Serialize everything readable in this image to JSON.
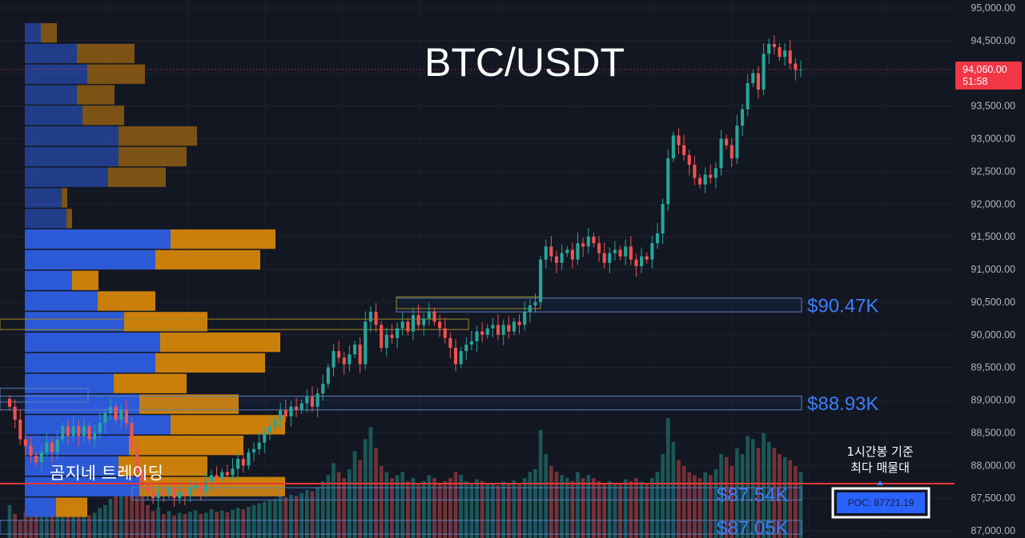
{
  "chart_data": {
    "type": "candlestick",
    "title": "BTC/USDT",
    "y_axis": {
      "ticks": [
        "95,000.00",
        "94,500.00",
        "94,000.00",
        "93,500.00",
        "93,000.00",
        "92,500.00",
        "92,000.00",
        "91,500.00",
        "91,000.00",
        "90,500.00",
        "90,000.00",
        "89,500.00",
        "89,000.00",
        "88,500.00",
        "88,000.00",
        "87,500.00",
        "87,000.00"
      ],
      "range": [
        86950,
        95050
      ],
      "position": "right"
    },
    "current_price": {
      "label": "94,060.00",
      "countdown": "51:58",
      "value": 94060,
      "color": "#f23645"
    },
    "zones": [
      {
        "label": "$90.47K",
        "low": 90350,
        "high": 90560
      },
      {
        "label": "$88.93K",
        "low": 88850,
        "high": 89060
      },
      {
        "label": "$87.54K",
        "low": 87470,
        "high": 87660
      },
      {
        "label": "$87.05K",
        "low": 86950,
        "high": 87160
      }
    ],
    "poc": {
      "label": "POC: 87721.19",
      "value": 87721.19,
      "line_color": "#e53935"
    },
    "annotation": {
      "line1": "1시간봉 기준",
      "line2": "최다 매물대"
    },
    "watermark": "곰지네 트레이딩",
    "volume_profile": {
      "bucket_size_usd": 312,
      "buy_color": "#2d5de0",
      "sell_color": "#d4850a",
      "rows": [
        {
          "buy": 20,
          "sell": 20
        },
        {
          "buy": 65,
          "sell": 72
        },
        {
          "buy": 78,
          "sell": 72
        },
        {
          "buy": 65,
          "sell": 47
        },
        {
          "buy": 72,
          "sell": 52
        },
        {
          "buy": 117,
          "sell": 98
        },
        {
          "buy": 117,
          "sell": 85
        },
        {
          "buy": 104,
          "sell": 72
        },
        {
          "buy": 46,
          "sell": 7
        },
        {
          "buy": 52,
          "sell": 7
        },
        {
          "buy": 182,
          "sell": 131
        },
        {
          "buy": 163,
          "sell": 131
        },
        {
          "buy": 59,
          "sell": 33
        },
        {
          "buy": 91,
          "sell": 72
        },
        {
          "buy": 124,
          "sell": 104
        },
        {
          "buy": 169,
          "sell": 150
        },
        {
          "buy": 163,
          "sell": 137
        },
        {
          "buy": 111,
          "sell": 91
        },
        {
          "buy": 143,
          "sell": 124
        },
        {
          "buy": 182,
          "sell": 143
        },
        {
          "buy": 130,
          "sell": 143
        },
        {
          "buy": 117,
          "sell": 111
        },
        {
          "buy": 143,
          "sell": 182
        },
        {
          "buy": 39,
          "sell": 39
        }
      ]
    },
    "candles_close": [
      88900,
      88700,
      88400,
      88300,
      88150,
      88050,
      88200,
      88350,
      88200,
      88400,
      88600,
      88450,
      88600,
      88450,
      88600,
      88400,
      88500,
      88650,
      88800,
      88900,
      88700,
      88850,
      88650,
      88250,
      87900,
      87700,
      87600,
      87500,
      87600,
      87550,
      87650,
      87500,
      87600,
      87550,
      87650,
      87700,
      87600,
      87750,
      87850,
      87800,
      87900,
      87850,
      87950,
      88100,
      88000,
      88200,
      88250,
      88350,
      88500,
      88600,
      88700,
      88850,
      88750,
      88900,
      88850,
      88950,
      89050,
      88900,
      89100,
      89250,
      89500,
      89750,
      89650,
      89550,
      89700,
      89850,
      89550,
      90200,
      90350,
      90150,
      89800,
      90000,
      89950,
      90100,
      90200,
      90050,
      90300,
      90150,
      90250,
      90350,
      90200,
      90100,
      89950,
      89800,
      89550,
      89750,
      89850,
      89900,
      90050,
      90000,
      90100,
      90150,
      90000,
      90150,
      90050,
      90200,
      90150,
      90350,
      90450,
      90500,
      91150,
      91350,
      91200,
      91100,
      91250,
      91300,
      91150,
      91400,
      91350,
      91500,
      91400,
      91250,
      91100,
      91250,
      91300,
      91200,
      91350,
      91150,
      91050,
      91200,
      91150,
      91400,
      91550,
      92000,
      92700,
      93050,
      92900,
      92750,
      92600,
      92400,
      92300,
      92450,
      92400,
      92550,
      93000,
      92900,
      92700,
      93200,
      93450,
      93850,
      94000,
      93750,
      94300,
      94450,
      94400,
      94250,
      94350,
      94150,
      94050,
      94060
    ],
    "volume": [
      55,
      40,
      30,
      45,
      35,
      50,
      60,
      40,
      55,
      45,
      35,
      48,
      52,
      60,
      45,
      38,
      42,
      50,
      55,
      65,
      70,
      80,
      95,
      110,
      90,
      70,
      55,
      45,
      50,
      40,
      45,
      38,
      42,
      40,
      44,
      46,
      40,
      42,
      48,
      44,
      46,
      43,
      47,
      50,
      48,
      52,
      55,
      58,
      60,
      62,
      65,
      70,
      68,
      72,
      70,
      75,
      80,
      78,
      85,
      95,
      105,
      125,
      110,
      100,
      115,
      145,
      130,
      165,
      185,
      150,
      120,
      110,
      100,
      105,
      110,
      95,
      100,
      90,
      95,
      105,
      100,
      90,
      95,
      100,
      110,
      105,
      95,
      92,
      98,
      95,
      90,
      92,
      88,
      94,
      90,
      96,
      92,
      100,
      110,
      115,
      180,
      140,
      120,
      110,
      105,
      100,
      95,
      110,
      100,
      105,
      100,
      95,
      90,
      95,
      92,
      90,
      98,
      95,
      100,
      94,
      92,
      100,
      110,
      140,
      200,
      160,
      130,
      120,
      110,
      105,
      100,
      110,
      105,
      115,
      140,
      135,
      120,
      150,
      140,
      170,
      165,
      150,
      175,
      160,
      150,
      140,
      135,
      130,
      120,
      110
    ]
  }
}
